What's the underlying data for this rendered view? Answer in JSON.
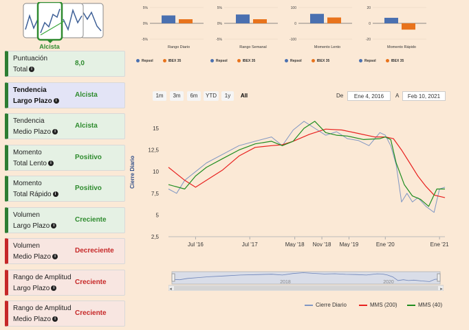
{
  "trend_icon": {
    "label": "Alcista"
  },
  "cards": [
    {
      "line1": "Puntuación",
      "line2": "Total",
      "value": "8,0",
      "style": "green",
      "bold": false
    },
    {
      "line1": "Tendencia",
      "line2": "Largo Plazo",
      "value": "Alcista",
      "style": "blue",
      "bold": true
    },
    {
      "line1": "Tendencia",
      "line2": "Medio Plazo",
      "value": "Alcista",
      "style": "green",
      "bold": false
    },
    {
      "line1": "Momento",
      "line2": "Total Lento",
      "value": "Positivo",
      "style": "green",
      "bold": false
    },
    {
      "line1": "Momento",
      "line2": "Total Rápido",
      "value": "Positivo",
      "style": "green",
      "bold": false
    },
    {
      "line1": "Volumen",
      "line2": "Largo Plazo",
      "value": "Creciente",
      "style": "green",
      "bold": false
    },
    {
      "line1": "Volumen",
      "line2": "Medio Plazo",
      "value": "Decreciente",
      "style": "red",
      "bold": false
    },
    {
      "line1": "Rango de Amplitud",
      "line2": "Largo Plazo",
      "value": "Creciente",
      "style": "red",
      "bold": false
    },
    {
      "line1": "Rango de Amplitud",
      "line2": "Medio Plazo",
      "value": "Creciente",
      "style": "red",
      "bold": false
    }
  ],
  "mini_charts": [
    {
      "title": "Rango Diario",
      "ticks": [
        "5%",
        "0%",
        "-5%"
      ],
      "ylim": [
        -5,
        5
      ],
      "values": [
        2.5,
        1.3
      ]
    },
    {
      "title": "Rango Semanal",
      "ticks": [
        "5%",
        "0%",
        "-5%"
      ],
      "ylim": [
        -5,
        5
      ],
      "values": [
        2.8,
        1.3
      ]
    },
    {
      "title": "Momento Lento",
      "ticks": [
        "100",
        "0",
        "-100"
      ],
      "ylim": [
        -100,
        100
      ],
      "values": [
        60,
        37
      ]
    },
    {
      "title": "Momento Rápido",
      "ticks": [
        "20",
        "0",
        "-20"
      ],
      "ylim": [
        -20,
        20
      ],
      "values": [
        7,
        -8
      ]
    }
  ],
  "mini_legend": {
    "a": "Repsol",
    "b": "IBEX 35"
  },
  "colors": {
    "repsol": "#4a70b0",
    "ibex": "#e8731c",
    "mms200": "#e8201e",
    "mms40": "#1e8c1e",
    "cierre": "#7f96c3"
  },
  "range_buttons": [
    "1m",
    "3m",
    "6m",
    "YTD",
    "1y",
    "All"
  ],
  "active_range": "All",
  "date_from_label": "De",
  "date_from": "Ene 4, 2016",
  "date_to_label": "A",
  "date_to": "Feb 10, 2021",
  "chart_data": {
    "type": "line",
    "ylabel": "Cierre Diario",
    "yticks": [
      "15",
      "12,5",
      "10",
      "7,5",
      "5",
      "2,5"
    ],
    "ylim": [
      2.5,
      16.5
    ],
    "xticks": [
      "Jul '16",
      "Jul '17",
      "May '18",
      "Nov '18",
      "May '19",
      "Ene '20",
      "Ene '21"
    ],
    "xticks_t": [
      0.5,
      1.5,
      2.33,
      2.83,
      3.33,
      4.0,
      5.0
    ],
    "xlim": [
      0,
      5.1
    ],
    "series": [
      {
        "name": "Cierre Diario",
        "t": [
          0,
          0.15,
          0.3,
          0.5,
          0.7,
          1.0,
          1.3,
          1.6,
          1.9,
          2.1,
          2.3,
          2.5,
          2.7,
          2.9,
          3.1,
          3.3,
          3.5,
          3.7,
          3.9,
          4.0,
          4.1,
          4.2,
          4.3,
          4.4,
          4.5,
          4.6,
          4.75,
          4.9,
          5.0,
          5.1
        ],
        "y": [
          8,
          7.5,
          9,
          10,
          11,
          12,
          13,
          13.5,
          14,
          13,
          14.8,
          15.8,
          15,
          14.2,
          14.6,
          13.8,
          13.6,
          13,
          14.5,
          14.2,
          13,
          10.8,
          6.5,
          7.5,
          6.5,
          7,
          6,
          5.3,
          8,
          8.2
        ]
      },
      {
        "name": "MMS (200)",
        "t": [
          0,
          0.3,
          0.5,
          0.7,
          1.0,
          1.3,
          1.6,
          1.9,
          2.1,
          2.3,
          2.6,
          2.9,
          3.2,
          3.5,
          3.8,
          4.0,
          4.15,
          4.3,
          4.45,
          4.6,
          4.75,
          4.9,
          5.1
        ],
        "y": [
          10.5,
          9,
          8.2,
          9,
          10.2,
          11.8,
          12.8,
          13,
          13.1,
          13.5,
          14.3,
          14.9,
          14.8,
          14.4,
          14,
          14,
          13.8,
          12.5,
          11,
          9.5,
          8.3,
          7.3,
          7
        ]
      },
      {
        "name": "MMS (40)",
        "t": [
          0,
          0.3,
          0.5,
          0.7,
          1.0,
          1.3,
          1.6,
          1.9,
          2.1,
          2.3,
          2.5,
          2.7,
          2.9,
          3.1,
          3.3,
          3.6,
          3.9,
          4.0,
          4.1,
          4.2,
          4.35,
          4.5,
          4.65,
          4.8,
          4.95,
          5.1
        ],
        "y": [
          8.5,
          8,
          9.5,
          10.5,
          11.5,
          12.5,
          13.2,
          13.5,
          13,
          13.5,
          15,
          15.8,
          14.5,
          14.2,
          14.1,
          13.7,
          13.8,
          14,
          13.7,
          11,
          8.5,
          7.2,
          6.8,
          6,
          8,
          8
        ]
      }
    ],
    "navigator_labels": [
      "2018",
      "2020"
    ]
  }
}
